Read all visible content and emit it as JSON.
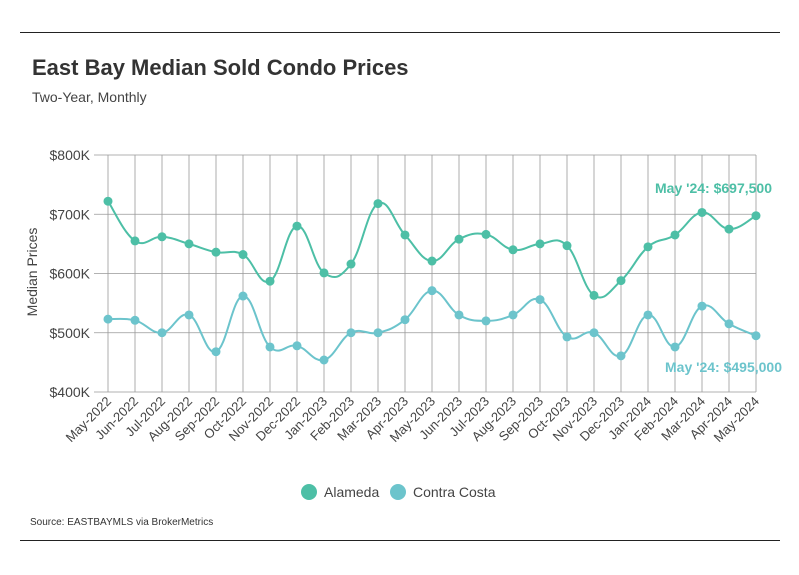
{
  "header": {
    "title": "East Bay Median Sold Condo Prices",
    "subtitle": "Two-Year, Monthly"
  },
  "footer": {
    "source": "Source:  EASTBAYMLS via BrokerMetrics"
  },
  "colors": {
    "alameda": "#4dbfa6",
    "contra_costa": "#6cc4cc",
    "grid": "#999999"
  },
  "chart_data": {
    "type": "line",
    "title": "East Bay Median Sold Condo Prices",
    "subtitle": "Two-Year, Monthly",
    "xlabel": "",
    "ylabel": "Median Prices",
    "ylim": [
      400000,
      800000
    ],
    "yticks": [
      400000,
      500000,
      600000,
      700000,
      800000
    ],
    "ytick_labels": [
      "$400K",
      "$500K",
      "$600K",
      "$700K",
      "$800K"
    ],
    "grid": true,
    "legend_position": "bottom-center",
    "categories": [
      "May-2022",
      "Jun-2022",
      "Jul-2022",
      "Aug-2022",
      "Sep-2022",
      "Oct-2022",
      "Nov-2022",
      "Dec-2022",
      "Jan-2023",
      "Feb-2023",
      "Mar-2023",
      "Apr-2023",
      "May-2023",
      "Jun-2023",
      "Jul-2023",
      "Aug-2023",
      "Sep-2023",
      "Oct-2023",
      "Nov-2023",
      "Dec-2023",
      "Jan-2024",
      "Feb-2024",
      "Mar-2024",
      "Apr-2024",
      "May-2024"
    ],
    "series": [
      {
        "name": "Alameda",
        "color": "#4dbfa6",
        "values": [
          722000,
          655000,
          662000,
          650000,
          636000,
          632000,
          587000,
          680000,
          601000,
          616000,
          718000,
          665000,
          621000,
          658000,
          666000,
          640000,
          650000,
          647000,
          563000,
          588000,
          645000,
          665000,
          703000,
          675000,
          697500
        ]
      },
      {
        "name": "Contra Costa",
        "color": "#6cc4cc",
        "values": [
          523000,
          521000,
          500000,
          530000,
          468000,
          562000,
          476000,
          478000,
          454000,
          500000,
          500000,
          522000,
          571000,
          530000,
          520000,
          530000,
          556000,
          493000,
          500000,
          461000,
          530000,
          476000,
          545000,
          515000,
          495000
        ]
      }
    ],
    "annotations": [
      {
        "series": "Alameda",
        "text": "May '24: $697,500"
      },
      {
        "series": "Contra Costa",
        "text": "May '24: $495,000"
      }
    ]
  }
}
